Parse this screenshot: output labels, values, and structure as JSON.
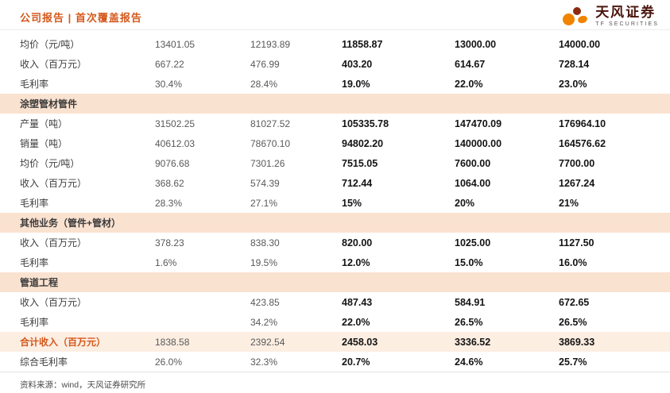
{
  "header": {
    "breadcrumb": "公司报告 | 首次覆盖报告",
    "logo": {
      "cn": "天风证券",
      "en": "TF SECURITIES"
    }
  },
  "colors": {
    "accent": "#d4581c",
    "logo_orange": "#f08300",
    "logo_dark_red": "#8c2a12",
    "section_bg": "#fae2d0",
    "total_bg": "#fdeee2",
    "historical_text": "#595959",
    "forecast_text": "#141414"
  },
  "table": {
    "rows": [
      {
        "type": "data",
        "label": "均价（元/吨）",
        "values": [
          "13401.05",
          "12193.89",
          "11858.87",
          "13000.00",
          "14000.00"
        ]
      },
      {
        "type": "data",
        "label": "收入（百万元）",
        "values": [
          "667.22",
          "476.99",
          "403.20",
          "614.67",
          "728.14"
        ]
      },
      {
        "type": "data",
        "label": "毛利率",
        "values": [
          "30.4%",
          "28.4%",
          "19.0%",
          "22.0%",
          "23.0%"
        ]
      },
      {
        "type": "section",
        "label": "涂塑管材管件"
      },
      {
        "type": "data",
        "label": "产量（吨）",
        "values": [
          "31502.25",
          "81027.52",
          "105335.78",
          "147470.09",
          "176964.10"
        ]
      },
      {
        "type": "data",
        "label": "销量（吨）",
        "values": [
          "40612.03",
          "78670.10",
          "94802.20",
          "140000.00",
          "164576.62"
        ]
      },
      {
        "type": "data",
        "label": "均价（元/吨）",
        "values": [
          "9076.68",
          "7301.26",
          "7515.05",
          "7600.00",
          "7700.00"
        ]
      },
      {
        "type": "data",
        "label": "收入（百万元）",
        "values": [
          "368.62",
          "574.39",
          "712.44",
          "1064.00",
          "1267.24"
        ]
      },
      {
        "type": "data",
        "label": "毛利率",
        "values": [
          "28.3%",
          "27.1%",
          "15%",
          "20%",
          "21%"
        ]
      },
      {
        "type": "section",
        "label": "其他业务（管件+管材）"
      },
      {
        "type": "data",
        "label": "收入（百万元）",
        "values": [
          "378.23",
          "838.30",
          "820.00",
          "1025.00",
          "1127.50"
        ]
      },
      {
        "type": "data",
        "label": "毛利率",
        "values": [
          "1.6%",
          "19.5%",
          "12.0%",
          "15.0%",
          "16.0%"
        ]
      },
      {
        "type": "section",
        "label": "管道工程"
      },
      {
        "type": "data",
        "label": "收入（百万元）",
        "values": [
          "",
          "423.85",
          "487.43",
          "584.91",
          "672.65"
        ]
      },
      {
        "type": "data",
        "label": "毛利率",
        "values": [
          "",
          "34.2%",
          "22.0%",
          "26.5%",
          "26.5%"
        ]
      },
      {
        "type": "total",
        "label": "合计收入（百万元）",
        "values": [
          "1838.58",
          "2392.54",
          "2458.03",
          "3336.52",
          "3869.33"
        ]
      },
      {
        "type": "data",
        "label": "综合毛利率",
        "values": [
          "26.0%",
          "32.3%",
          "20.7%",
          "24.6%",
          "25.7%"
        ]
      }
    ]
  },
  "footer": {
    "source": "资料来源：wind，天风证券研究所"
  }
}
